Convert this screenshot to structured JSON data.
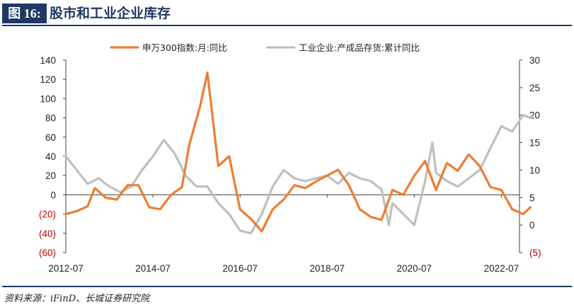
{
  "figure": {
    "label": "图 16:",
    "title": "股市和工业企业库存",
    "source": "资料来源：iFinD、长城证券研究院"
  },
  "colors": {
    "series1": "#ed7d31",
    "series2": "#bfbfbf",
    "header": "#1f3864",
    "negative_tick": "#c00000"
  },
  "chart_data": {
    "type": "line",
    "title": "股市和工业企业库存",
    "legend_position": "top-center",
    "grid": false,
    "x_tick_labels": [
      "2012-07",
      "2014-07",
      "2016-07",
      "2018-07",
      "2020-07",
      "2022-07"
    ],
    "x_range": [
      "2012-07",
      "2022-12"
    ],
    "y_left": {
      "range": [
        -60,
        140
      ],
      "ticks": [
        "140",
        "120",
        "100",
        "80",
        "60",
        "40",
        "20",
        "0",
        "(20)",
        "(40)",
        "(60)"
      ]
    },
    "y_right": {
      "range": [
        -5,
        30
      ],
      "ticks": [
        "30",
        "25",
        "20",
        "15",
        "10",
        "5",
        "0",
        "(5)"
      ]
    },
    "series": [
      {
        "name": "申万300指数:月:同比",
        "axis": "left",
        "points": [
          [
            "2012-07",
            -20
          ],
          [
            "2012-10",
            -17
          ],
          [
            "2013-01",
            -12
          ],
          [
            "2013-03",
            7
          ],
          [
            "2013-06",
            -3
          ],
          [
            "2013-09",
            -5
          ],
          [
            "2013-12",
            10
          ],
          [
            "2014-03",
            10
          ],
          [
            "2014-06",
            -13
          ],
          [
            "2014-09",
            -15
          ],
          [
            "2014-12",
            0
          ],
          [
            "2015-03",
            8
          ],
          [
            "2015-05",
            52
          ],
          [
            "2015-08",
            92
          ],
          [
            "2015-10",
            127
          ],
          [
            "2016-01",
            30
          ],
          [
            "2016-04",
            40
          ],
          [
            "2016-07",
            -15
          ],
          [
            "2016-10",
            -25
          ],
          [
            "2017-01",
            -38
          ],
          [
            "2017-04",
            -15
          ],
          [
            "2017-07",
            -5
          ],
          [
            "2017-10",
            10
          ],
          [
            "2018-01",
            7
          ],
          [
            "2018-04",
            14
          ],
          [
            "2018-07",
            20
          ],
          [
            "2018-10",
            26
          ],
          [
            "2019-01",
            10
          ],
          [
            "2019-04",
            -15
          ],
          [
            "2019-07",
            -23
          ],
          [
            "2019-10",
            -26
          ],
          [
            "2020-01",
            5
          ],
          [
            "2020-04",
            0
          ],
          [
            "2020-07",
            20
          ],
          [
            "2020-10",
            35
          ],
          [
            "2021-01",
            5
          ],
          [
            "2021-04",
            33
          ],
          [
            "2021-07",
            25
          ],
          [
            "2021-10",
            42
          ],
          [
            "2022-01",
            30
          ],
          [
            "2022-04",
            8
          ],
          [
            "2022-07",
            5
          ],
          [
            "2022-10",
            -15
          ],
          [
            "2023-01",
            -20
          ],
          [
            "2023-03",
            -13
          ]
        ]
      },
      {
        "name": "工业企业:产成品存货:累计同比",
        "axis": "right",
        "points": [
          [
            "2012-07",
            12.5
          ],
          [
            "2012-10",
            10
          ],
          [
            "2013-01",
            7.5
          ],
          [
            "2013-04",
            8.5
          ],
          [
            "2013-07",
            7
          ],
          [
            "2013-10",
            6
          ],
          [
            "2014-01",
            7
          ],
          [
            "2014-04",
            10
          ],
          [
            "2014-07",
            12.5
          ],
          [
            "2014-10",
            15.5
          ],
          [
            "2015-01",
            13
          ],
          [
            "2015-04",
            9
          ],
          [
            "2015-07",
            7
          ],
          [
            "2015-10",
            7
          ],
          [
            "2016-01",
            4
          ],
          [
            "2016-04",
            2
          ],
          [
            "2016-07",
            -1
          ],
          [
            "2016-10",
            -1.5
          ],
          [
            "2017-01",
            2
          ],
          [
            "2017-04",
            7
          ],
          [
            "2017-07",
            10
          ],
          [
            "2017-10",
            8.5
          ],
          [
            "2018-01",
            8
          ],
          [
            "2018-04",
            8.5
          ],
          [
            "2018-07",
            9
          ],
          [
            "2018-10",
            7.5
          ],
          [
            "2019-01",
            9.5
          ],
          [
            "2019-04",
            8.5
          ],
          [
            "2019-07",
            8
          ],
          [
            "2019-10",
            6.5
          ],
          [
            "2019-12",
            0
          ],
          [
            "2020-01",
            4
          ],
          [
            "2020-04",
            2
          ],
          [
            "2020-07",
            0
          ],
          [
            "2020-10",
            8
          ],
          [
            "2020-12",
            15
          ],
          [
            "2021-01",
            9.5
          ],
          [
            "2021-04",
            8
          ],
          [
            "2021-07",
            7
          ],
          [
            "2021-10",
            8.5
          ],
          [
            "2022-01",
            10
          ],
          [
            "2022-04",
            14
          ],
          [
            "2022-07",
            18
          ],
          [
            "2022-10",
            17
          ],
          [
            "2023-01",
            20
          ],
          [
            "2023-03",
            19.5
          ]
        ]
      }
    ]
  }
}
